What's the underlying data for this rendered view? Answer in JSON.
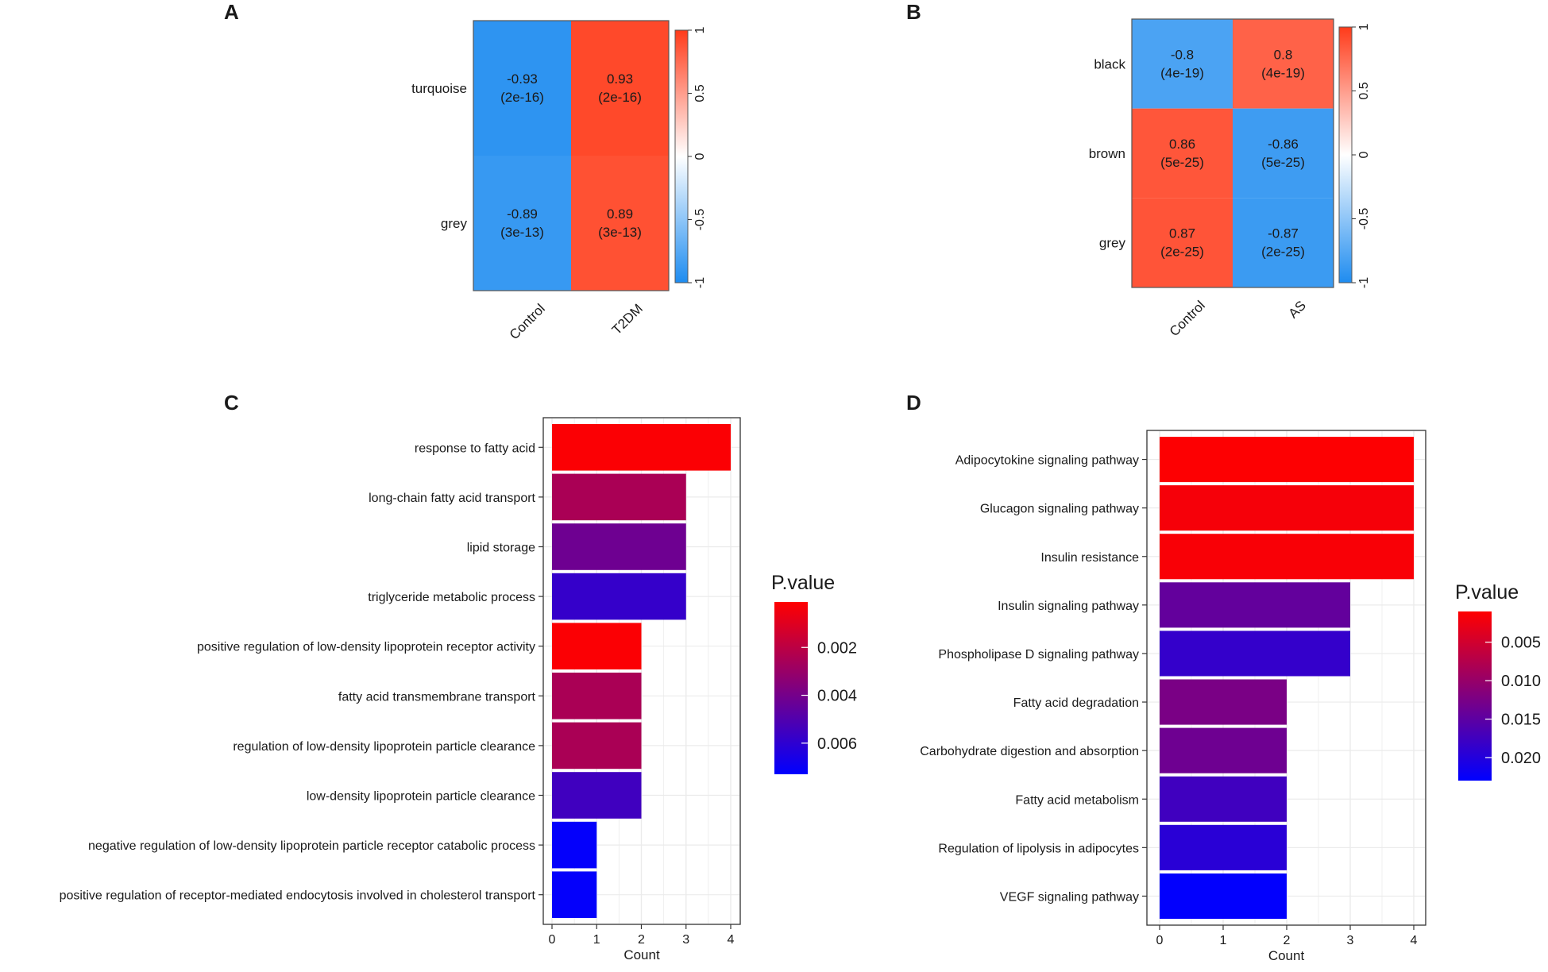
{
  "panels": {
    "a": "A",
    "b": "B",
    "c": "C",
    "d": "D"
  },
  "colors": {
    "heat_pos": "#ff3b1a",
    "heat_neg": "#1e8cf0",
    "bar_high": "#ff0000",
    "bar_low": "#0000ff",
    "grid": "#ebebeb",
    "axis": "#333333"
  },
  "chart_data": [
    {
      "id": "A",
      "type": "heatmap",
      "rows": [
        "turquoise",
        "grey"
      ],
      "columns": [
        "Control",
        "T2DM"
      ],
      "values": [
        [
          -0.93,
          0.93
        ],
        [
          -0.89,
          0.89
        ]
      ],
      "cell_text": [
        [
          "-0.93",
          "0.93"
        ],
        [
          "-0.89",
          "0.89"
        ]
      ],
      "pvalues": [
        [
          "(2e-16)",
          "(2e-16)"
        ],
        [
          "(3e-13)",
          "(3e-13)"
        ]
      ],
      "colorbar": {
        "range": [
          -1,
          1
        ],
        "ticks": [
          "1",
          "0.5",
          "0",
          "-0.5",
          "-1"
        ],
        "tick_values": [
          1,
          0.5,
          0,
          -0.5,
          -1
        ]
      }
    },
    {
      "id": "B",
      "type": "heatmap",
      "rows": [
        "black",
        "brown",
        "grey"
      ],
      "columns": [
        "Control",
        "AS"
      ],
      "values": [
        [
          -0.8,
          0.8
        ],
        [
          0.86,
          -0.86
        ],
        [
          0.87,
          -0.87
        ]
      ],
      "cell_text": [
        [
          "-0.8",
          "0.8"
        ],
        [
          "0.86",
          "-0.86"
        ],
        [
          "0.87",
          "-0.87"
        ]
      ],
      "pvalues": [
        [
          "(4e-19)",
          "(4e-19)"
        ],
        [
          "(5e-25)",
          "(5e-25)"
        ],
        [
          "(2e-25)",
          "(2e-25)"
        ]
      ],
      "colorbar": {
        "range": [
          -1,
          1
        ],
        "ticks": [
          "1",
          "0.5",
          "0",
          "-0.5",
          "-1"
        ],
        "tick_values": [
          1,
          0.5,
          0,
          -0.5,
          -1
        ]
      }
    },
    {
      "id": "C",
      "type": "bar",
      "orientation": "horizontal",
      "categories": [
        "response to fatty acid",
        "long-chain fatty acid transport",
        "lipid storage",
        "triglyceride metabolic process",
        "positive regulation of low-density lipoprotein receptor activity",
        "fatty acid transmembrane transport",
        "regulation of low-density lipoprotein particle clearance",
        "low-density lipoprotein particle clearance",
        "negative regulation of low-density lipoprotein particle receptor catabolic process",
        "positive regulation of receptor-mediated endocytosis involved in cholesterol transport"
      ],
      "values": [
        4,
        3,
        3,
        3,
        2,
        2,
        2,
        2,
        1,
        1
      ],
      "pvalues": [
        0.0002,
        0.0025,
        0.0042,
        0.0058,
        0.0002,
        0.0025,
        0.0025,
        0.0055,
        0.0072,
        0.0072
      ],
      "xlabel": "Count",
      "xlim": [
        0,
        4
      ],
      "xticks": [
        "0",
        "1",
        "2",
        "3",
        "4"
      ],
      "legend": {
        "title": "P.value",
        "range": [
          0.0001,
          0.0073
        ],
        "ticks": [
          "0.002",
          "0.004",
          "0.006"
        ],
        "tick_values": [
          0.002,
          0.004,
          0.006
        ]
      }
    },
    {
      "id": "D",
      "type": "bar",
      "orientation": "horizontal",
      "categories": [
        "Adipocytokine signaling pathway",
        "Glucagon signaling pathway",
        "Insulin resistance",
        "Insulin signaling pathway",
        "Phospholipase D signaling pathway",
        "Fatty acid degradation",
        "Carbohydrate digestion and absorption",
        "Fatty acid metabolism",
        "Regulation of lipolysis in adipocytes",
        "VEGF signaling pathway"
      ],
      "values": [
        4,
        4,
        4,
        3,
        3,
        2,
        2,
        2,
        2,
        2
      ],
      "pvalues": [
        0.0012,
        0.0018,
        0.0015,
        0.0145,
        0.0185,
        0.0125,
        0.0135,
        0.0175,
        0.0195,
        0.0228
      ],
      "xlabel": "Count",
      "xlim": [
        0,
        4
      ],
      "xticks": [
        "0",
        "1",
        "2",
        "3",
        "4"
      ],
      "legend": {
        "title": "P.value",
        "range": [
          0.001,
          0.023
        ],
        "ticks": [
          "0.005",
          "0.010",
          "0.015",
          "0.020"
        ],
        "tick_values": [
          0.005,
          0.01,
          0.015,
          0.02
        ]
      }
    }
  ]
}
